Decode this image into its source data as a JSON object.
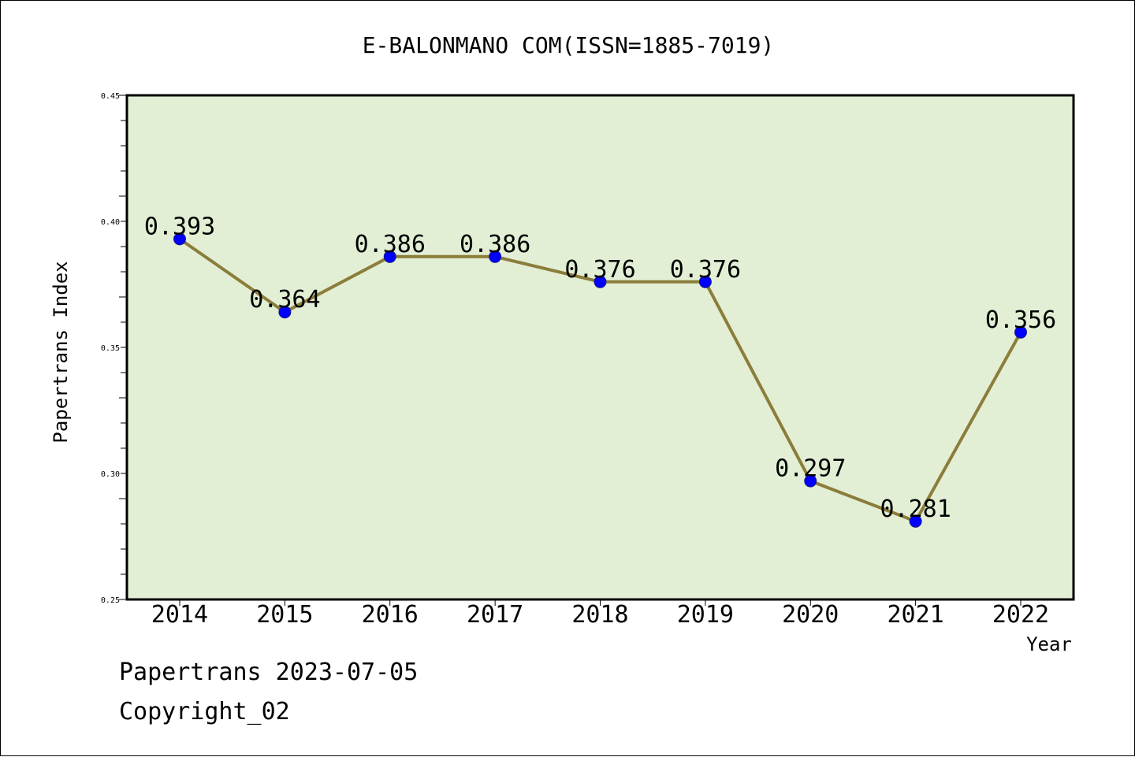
{
  "chart_data": {
    "type": "line",
    "title": "E-BALONMANO COM(ISSN=1885-7019)",
    "xlabel": "Year",
    "ylabel": "Papertrans Index",
    "categories": [
      "2014",
      "2015",
      "2016",
      "2017",
      "2018",
      "2019",
      "2020",
      "2021",
      "2022"
    ],
    "series": [
      {
        "values": [
          0.393,
          0.364,
          0.386,
          0.386,
          0.376,
          0.376,
          0.297,
          0.281,
          0.356
        ],
        "labels": [
          "0.393",
          "0.364",
          "0.386",
          "0.386",
          "0.376",
          "0.376",
          "0.297",
          "0.281",
          "0.356"
        ],
        "line_color": "#8b7d3a",
        "marker_color": "#0000ff"
      }
    ],
    "ylim": [
      0.25,
      0.45
    ],
    "yticks": [
      0.25,
      0.3,
      0.35,
      0.4,
      0.45
    ],
    "ytick_labels": [
      "0.25",
      "0.30",
      "0.35",
      "0.40",
      "0.45"
    ],
    "grid": false,
    "plot_background": "#e2efd5"
  },
  "footer": {
    "line1": "Papertrans 2023-07-05",
    "line2": "Copyright_02"
  }
}
